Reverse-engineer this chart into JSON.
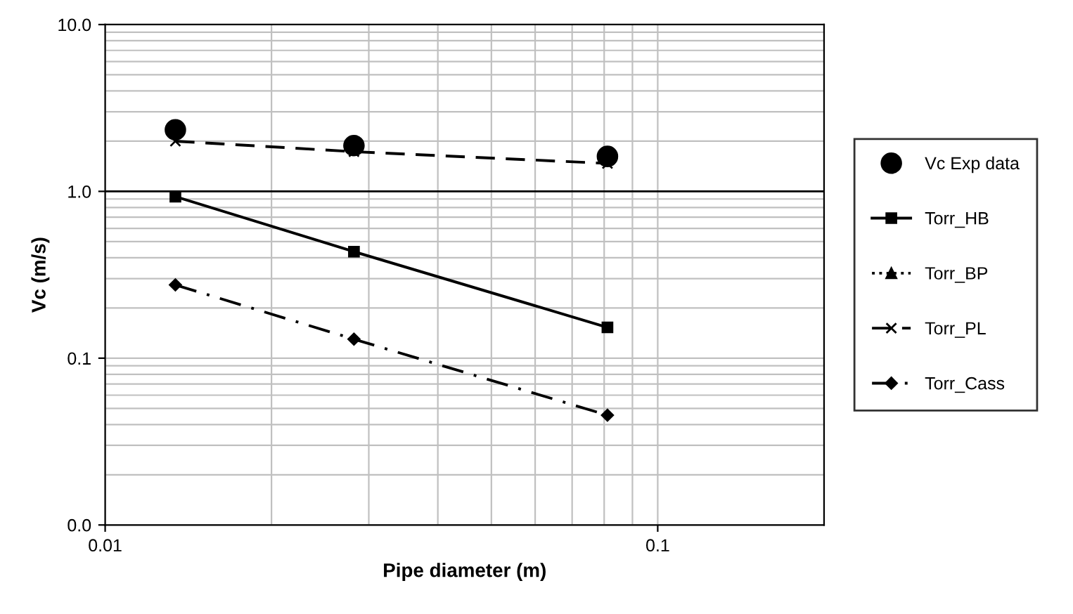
{
  "chart_data": {
    "type": "line",
    "xlabel": "Pipe diameter (m)",
    "ylabel": "Vc (m/s)",
    "log": "xy",
    "grid": true,
    "legend": "right",
    "xlim": [
      0.01,
      0.2
    ],
    "ylim": [
      0.01,
      10
    ],
    "xticks": [
      0.01,
      0.1
    ],
    "yticks": [
      {
        "value": 0.01,
        "label": "0.0"
      },
      {
        "value": 0.1,
        "label": "0.1"
      },
      {
        "value": 1,
        "label": "1.0"
      },
      {
        "value": 10,
        "label": "10.0"
      }
    ],
    "x": [
      0.0134,
      0.0282,
      0.0811
    ],
    "ref_lines": [
      {
        "axis": "y",
        "value": 1,
        "color": "#000000",
        "line_style": "solid"
      }
    ],
    "series": [
      {
        "name": "Vc Exp data",
        "type": "scatter",
        "marker": "circle",
        "color": "#000000",
        "values": [
          2.34,
          1.88,
          1.62
        ]
      },
      {
        "name": "Torr_HB",
        "marker": "square",
        "line_style": "solid",
        "color": "#000000",
        "values": [
          0.93,
          0.435,
          0.153
        ]
      },
      {
        "name": "Torr_BP",
        "marker": "triangle",
        "line_style": "dotted",
        "color": "#000000",
        "values": [
          null,
          null,
          null
        ]
      },
      {
        "name": "Torr_PL",
        "marker": "cross",
        "line_style": "dashed",
        "color": "#000000",
        "values": [
          2.0,
          1.73,
          1.47
        ]
      },
      {
        "name": "Torr_Cass",
        "marker": "diamond",
        "line_style": "dashdot",
        "color": "#000000",
        "values": [
          0.275,
          0.13,
          0.0455
        ]
      }
    ]
  }
}
